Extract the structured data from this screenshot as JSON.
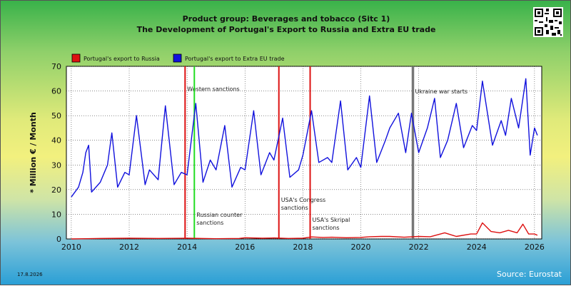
{
  "title_line1": "Product group: Beverages and tobacco (Sitc 1)",
  "title_line2": "The Development of Portugal's Export to  Russia and Extra EU trade",
  "footer": {
    "date": "17.8.2026",
    "source": "Source: Eurostat"
  },
  "colors": {
    "russia": "#dd1111",
    "extra_eu": "#1111dd",
    "green_event": "#22dd22",
    "ukraine_event": "#777777",
    "plot_bg": "#ffffff"
  },
  "chart_data": {
    "type": "line",
    "ylabel": "* Million € / Month",
    "xlabel": "",
    "ylim": [
      0,
      70
    ],
    "xlim": [
      2009.83,
      2026.25
    ],
    "yticks": [
      0,
      10,
      20,
      30,
      40,
      50,
      60,
      70
    ],
    "xticks": [
      2010,
      2012,
      2014,
      2016,
      2018,
      2020,
      2022,
      2024,
      2026
    ],
    "grid": true,
    "legend_position": "top-left",
    "series": [
      {
        "name": "Portugal's export to Russia",
        "color": "#dd1111",
        "x": [
          2010,
          2011,
          2012,
          2013,
          2014,
          2015,
          2015.8,
          2016,
          2016.6,
          2017,
          2017.5,
          2018,
          2018.3,
          2018.7,
          2019,
          2019.5,
          2020,
          2020.3,
          2020.7,
          2021,
          2021.5,
          2022,
          2022.4,
          2022.9,
          2023.3,
          2023.8,
          2024,
          2024.2,
          2024.5,
          2024.8,
          2025.1,
          2025.4,
          2025.6,
          2025.8,
          2026,
          2026.1
        ],
        "y": [
          0,
          0.2,
          0.3,
          0.2,
          0.3,
          0.1,
          0.2,
          0.5,
          0.3,
          0.4,
          0.2,
          0.3,
          0.8,
          0.6,
          0.7,
          0.5,
          0.6,
          0.9,
          1.0,
          1.0,
          0.7,
          1.0,
          0.9,
          2.5,
          1.0,
          2.0,
          2.0,
          6.5,
          3.0,
          2.5,
          3.5,
          2.5,
          6.0,
          2.0,
          2.0,
          1.5
        ]
      },
      {
        "name": "Portugal's export to Extra EU trade",
        "color": "#1111dd",
        "x": [
          2010,
          2010.25,
          2010.4,
          2010.5,
          2010.6,
          2010.7,
          2011,
          2011.25,
          2011.4,
          2011.6,
          2011.85,
          2012,
          2012.25,
          2012.55,
          2012.7,
          2013,
          2013.25,
          2013.55,
          2013.8,
          2014,
          2014.3,
          2014.55,
          2014.8,
          2015,
          2015.3,
          2015.55,
          2015.85,
          2016,
          2016.3,
          2016.55,
          2016.85,
          2017,
          2017.3,
          2017.55,
          2017.85,
          2018,
          2018.3,
          2018.55,
          2018.85,
          2019,
          2019.3,
          2019.55,
          2019.85,
          2020,
          2020.3,
          2020.55,
          2020.85,
          2021,
          2021.3,
          2021.55,
          2021.75,
          2022,
          2022.3,
          2022.55,
          2022.75,
          2023,
          2023.3,
          2023.55,
          2023.85,
          2024,
          2024.2,
          2024.55,
          2024.85,
          2025,
          2025.2,
          2025.45,
          2025.7,
          2025.85,
          2026,
          2026.1
        ],
        "y": [
          17,
          21,
          27,
          35,
          38,
          19,
          23,
          30,
          43,
          21,
          27,
          26,
          50,
          22,
          28,
          24,
          54,
          22,
          27,
          26,
          55,
          23,
          32,
          28,
          46,
          21,
          29,
          28,
          52,
          26,
          35,
          32,
          49,
          25,
          28,
          34,
          52,
          31,
          33,
          31,
          56,
          28,
          33,
          29,
          58,
          31,
          40,
          45,
          51,
          35,
          51,
          35,
          45,
          57,
          33,
          40,
          55,
          37,
          46,
          44,
          64,
          38,
          48,
          42,
          57,
          45,
          65,
          34,
          45,
          42
        ]
      }
    ],
    "annotations": [
      {
        "x": 2013.93,
        "label": "Western sanctions",
        "label_y": 60,
        "color": "#dd1111"
      },
      {
        "x": 2014.25,
        "label": "Russian counter\nsanctions",
        "label_y": 9,
        "color": "#22dd22"
      },
      {
        "x": 2017.17,
        "label": "USA's Congress\nsanctions",
        "label_y": 15,
        "color": "#dd1111"
      },
      {
        "x": 2018.25,
        "label": "USA's Skripal\nsanctions",
        "label_y": 7,
        "color": "#dd1111"
      },
      {
        "x": 2021.8,
        "label": "Ukraine war starts",
        "label_y": 59,
        "color": "#777777"
      }
    ]
  }
}
